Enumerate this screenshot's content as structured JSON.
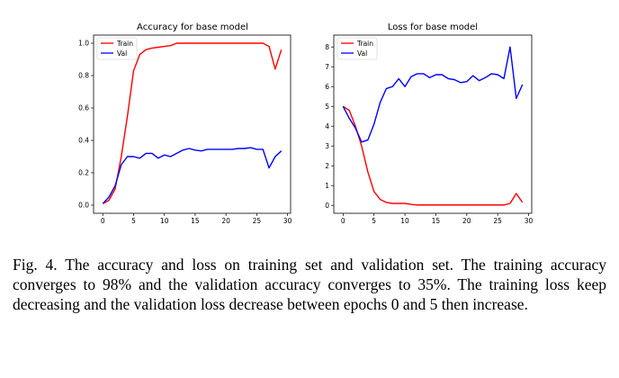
{
  "chart_data": [
    {
      "type": "line",
      "title": "Accuracy for base model",
      "xlabel": "",
      "ylabel": "",
      "xlim": [
        -1.5,
        30.5
      ],
      "ylim": [
        -0.05,
        1.05
      ],
      "xticks": [
        0,
        5,
        10,
        15,
        20,
        25,
        30
      ],
      "yticks": [
        0.0,
        0.2,
        0.4,
        0.6,
        0.8,
        1.0
      ],
      "ytick_labels": [
        "0.0",
        "0.2",
        "0.4",
        "0.6",
        "0.8",
        "1.0"
      ],
      "legend": "top-left",
      "grid": false,
      "x": [
        0,
        1,
        2,
        3,
        4,
        5,
        6,
        7,
        8,
        9,
        10,
        11,
        12,
        13,
        14,
        15,
        16,
        17,
        18,
        19,
        20,
        21,
        22,
        23,
        24,
        25,
        26,
        27,
        28,
        29
      ],
      "series": [
        {
          "name": "Train",
          "color": "#ff0000",
          "values": [
            0.01,
            0.03,
            0.1,
            0.3,
            0.55,
            0.83,
            0.93,
            0.96,
            0.97,
            0.975,
            0.98,
            0.985,
            1.0,
            1.0,
            1.0,
            1.0,
            1.0,
            1.0,
            1.0,
            1.0,
            1.0,
            1.0,
            1.0,
            1.0,
            1.0,
            1.0,
            1.0,
            0.98,
            0.84,
            0.96
          ]
        },
        {
          "name": "Val",
          "color": "#0000ff",
          "values": [
            0.01,
            0.05,
            0.12,
            0.25,
            0.3,
            0.3,
            0.29,
            0.32,
            0.32,
            0.29,
            0.31,
            0.3,
            0.32,
            0.34,
            0.35,
            0.34,
            0.335,
            0.345,
            0.345,
            0.345,
            0.345,
            0.345,
            0.35,
            0.35,
            0.355,
            0.345,
            0.345,
            0.23,
            0.3,
            0.335
          ]
        }
      ]
    },
    {
      "type": "line",
      "title": "Loss for base model",
      "xlabel": "",
      "ylabel": "",
      "xlim": [
        -1.5,
        30.5
      ],
      "ylim": [
        -0.4,
        8.6
      ],
      "xticks": [
        0,
        5,
        10,
        15,
        20,
        25,
        30
      ],
      "yticks": [
        0,
        1,
        2,
        3,
        4,
        5,
        6,
        7,
        8
      ],
      "ytick_labels": [
        "0",
        "1",
        "2",
        "3",
        "4",
        "5",
        "6",
        "7",
        "8"
      ],
      "legend": "top-left",
      "grid": false,
      "x": [
        0,
        1,
        2,
        3,
        4,
        5,
        6,
        7,
        8,
        9,
        10,
        11,
        12,
        13,
        14,
        15,
        16,
        17,
        18,
        19,
        20,
        21,
        22,
        23,
        24,
        25,
        26,
        27,
        28,
        29
      ],
      "series": [
        {
          "name": "Train",
          "color": "#ff0000",
          "values": [
            5.0,
            4.8,
            4.0,
            3.0,
            1.7,
            0.7,
            0.3,
            0.15,
            0.1,
            0.1,
            0.1,
            0.05,
            0.02,
            0.02,
            0.02,
            0.02,
            0.02,
            0.02,
            0.02,
            0.02,
            0.02,
            0.02,
            0.02,
            0.02,
            0.02,
            0.02,
            0.02,
            0.1,
            0.6,
            0.15
          ]
        },
        {
          "name": "Val",
          "color": "#0000ff",
          "values": [
            5.0,
            4.4,
            3.9,
            3.2,
            3.3,
            4.1,
            5.2,
            5.9,
            6.0,
            6.4,
            6.0,
            6.5,
            6.65,
            6.65,
            6.45,
            6.6,
            6.6,
            6.4,
            6.35,
            6.2,
            6.25,
            6.55,
            6.3,
            6.45,
            6.65,
            6.6,
            6.4,
            8.0,
            5.4,
            6.1
          ]
        }
      ]
    }
  ],
  "caption": {
    "text": "Fig. 4.  The accuracy and loss on training set and validation set. The training accuracy converges to 98% and the validation accuracy converges to 35%. The training loss keep decreasing and the validation loss decrease between epochs 0 and 5 then increase."
  }
}
